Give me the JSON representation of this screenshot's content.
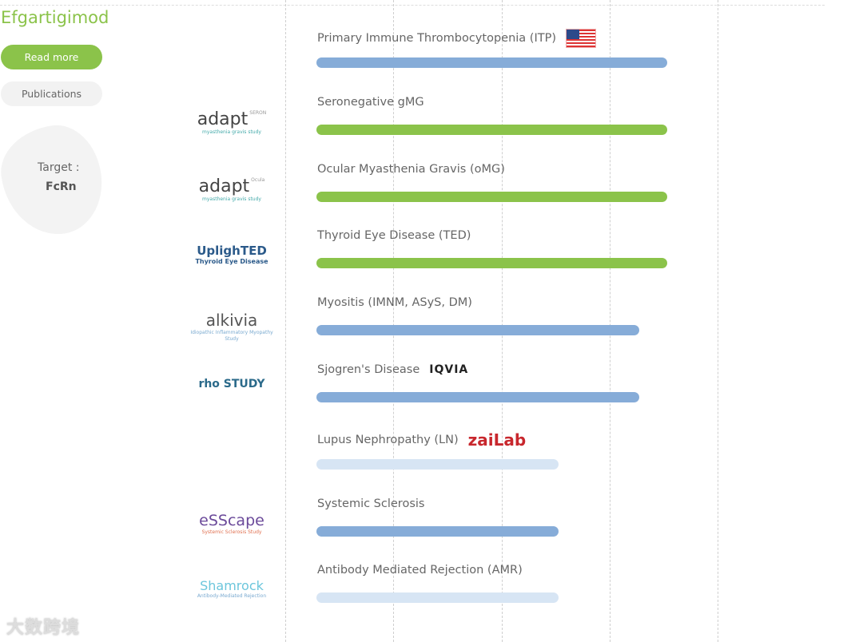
{
  "drug": {
    "name": "Efgartigimod",
    "read_more": "Read more",
    "publications": "Publications",
    "target_label": "Target :",
    "target_value": "FcRn"
  },
  "colors": {
    "accent": "#8bc34a",
    "blue": "#86acd8",
    "light_blue": "#d7e5f4",
    "green": "#8bc34a"
  },
  "indications": [
    {
      "label": "Primary Immune Thrombocytopenia (ITP)",
      "partner": "us-flag-icon",
      "progress": 100,
      "color": "blue"
    },
    {
      "label": "Seronegative gMG",
      "logo": "adapt",
      "logo_sup": "SERON",
      "logo_sub": "myasthenia gravis study",
      "progress": 100,
      "color": "green"
    },
    {
      "label": "Ocular Myasthenia Gravis (oMG)",
      "logo": "adapt",
      "logo_sup": "Ocula",
      "logo_sub": "myasthenia gravis study",
      "progress": 100,
      "color": "green"
    },
    {
      "label": "Thyroid Eye Disease (TED)",
      "logo": "UplighTED",
      "logo_sub": "Thyroid Eye Disease",
      "progress": 100,
      "color": "green"
    },
    {
      "label": "Myositis (IMNM, ASyS, DM)",
      "logo": "alkivia",
      "logo_sub": "Idiopathic Inflammatory Myopathy Study",
      "progress": 92,
      "color": "blue"
    },
    {
      "label": "Sjogren's Disease",
      "partner": "IQVIA",
      "logo": "rho STUDY",
      "progress": 92,
      "color": "blue"
    },
    {
      "label": "Lupus Nephropathy (LN)",
      "partner": "zaiLab",
      "progress": 69,
      "color": "light_blue"
    },
    {
      "label": "Systemic Sclerosis",
      "logo": "eSScape",
      "logo_sub": "Systemic Sclerosis Study",
      "progress": 69,
      "color": "blue"
    },
    {
      "label": "Antibody Mediated Rejection (AMR)",
      "logo": "Shamrock",
      "logo_sub": "Antibody-Mediated Rejection",
      "progress": 69,
      "color": "light_blue"
    }
  ],
  "watermark": "大数跨境"
}
